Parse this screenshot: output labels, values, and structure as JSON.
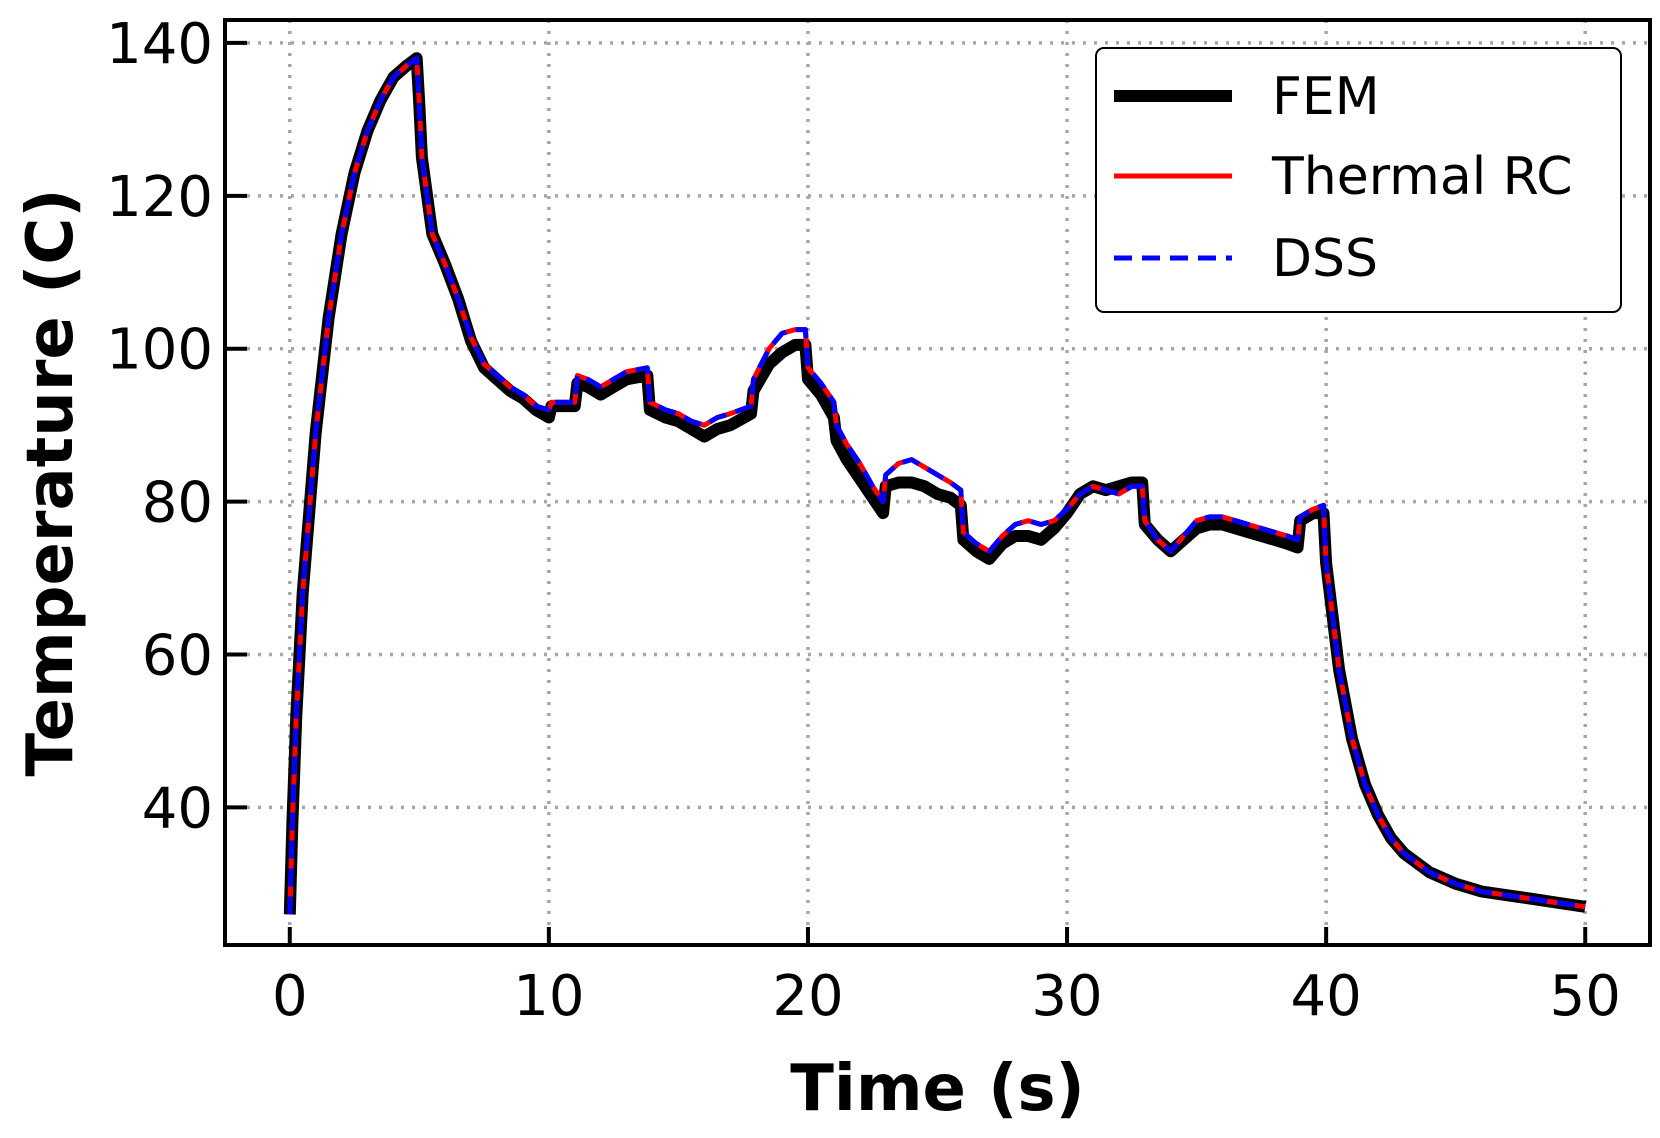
{
  "chart_data": {
    "type": "line",
    "title": "",
    "xlabel": "Time (s)",
    "ylabel": "Temperature (C)",
    "xlim": [
      -2.5,
      52.5
    ],
    "ylim": [
      22,
      143
    ],
    "xticks": [
      0,
      10,
      20,
      30,
      40,
      50
    ],
    "yticks": [
      40,
      60,
      80,
      100,
      120,
      140
    ],
    "grid": true,
    "legend_position": "top-right",
    "series": [
      {
        "name": "FEM",
        "color": "#000000",
        "style": "solid-thick",
        "x": [
          0,
          0.1,
          0.25,
          0.5,
          1,
          1.5,
          2,
          2.5,
          3,
          3.5,
          4,
          4.5,
          4.9,
          5.0,
          5.1,
          5.5,
          6,
          6.5,
          7,
          7.5,
          8,
          8.5,
          9,
          9.5,
          10,
          10.1,
          11,
          11.1,
          11.5,
          12,
          12.5,
          13,
          13.8,
          13.9,
          14.5,
          15,
          15.5,
          16,
          16.5,
          17,
          17.8,
          17.9,
          18.5,
          19,
          19.5,
          19.9,
          20.0,
          20.5,
          21,
          21.1,
          21.5,
          22,
          22.5,
          22.9,
          23.0,
          23.5,
          24,
          24.5,
          25,
          25.5,
          25.9,
          26.0,
          26.5,
          27,
          27.5,
          28,
          28.5,
          29,
          29.5,
          30,
          30.5,
          31,
          31.5,
          32,
          32.5,
          32.9,
          33.0,
          33.5,
          34,
          34.5,
          35,
          35.5,
          36,
          36.5,
          37,
          37.5,
          38,
          38.5,
          38.9,
          39.0,
          39.5,
          39.9,
          40.0,
          40.5,
          41,
          41.5,
          42,
          42.5,
          43,
          44,
          45,
          46,
          47,
          48,
          49,
          50
        ],
        "y": [
          26,
          38,
          52,
          68,
          89,
          104,
          115,
          123,
          128.5,
          132.5,
          135.5,
          137,
          138,
          132,
          125,
          115,
          111,
          106.5,
          101,
          97.5,
          96,
          94.5,
          93.5,
          92,
          91,
          92.5,
          92.5,
          95.5,
          95,
          94,
          95,
          96,
          96.5,
          92,
          91,
          90.5,
          89.5,
          88.5,
          89.5,
          90,
          91.5,
          94.5,
          98,
          99.5,
          100.5,
          100.5,
          96,
          94,
          91,
          88,
          85.5,
          83,
          80.5,
          78.5,
          82,
          82.5,
          82.5,
          82,
          81,
          80.5,
          79.5,
          75,
          73.5,
          72.5,
          74.5,
          75.5,
          75.5,
          75,
          76.5,
          78.5,
          81,
          82,
          81.5,
          82,
          82.5,
          82.5,
          77,
          75,
          73.5,
          75,
          76.5,
          77,
          77,
          76.5,
          76,
          75.5,
          75,
          74.5,
          74,
          77.5,
          78.5,
          78.5,
          72,
          58,
          49,
          43,
          39,
          36,
          34,
          31.5,
          30,
          29,
          28.5,
          28,
          27.5,
          27
        ]
      },
      {
        "name": "Thermal RC",
        "color": "#ff0000",
        "style": "solid",
        "x": [
          0,
          0.1,
          0.25,
          0.5,
          1,
          1.5,
          2,
          2.5,
          3,
          3.5,
          4,
          4.5,
          4.9,
          5.0,
          5.1,
          5.5,
          6,
          6.5,
          7,
          7.5,
          8,
          8.5,
          9,
          9.5,
          10,
          10.1,
          11,
          11.1,
          11.5,
          12,
          12.5,
          13,
          13.8,
          13.9,
          14.5,
          15,
          15.5,
          16,
          16.5,
          17,
          17.8,
          17.9,
          18.5,
          19,
          19.5,
          19.9,
          20.0,
          20.5,
          21,
          21.1,
          21.5,
          22,
          22.5,
          22.9,
          23.0,
          23.5,
          24,
          24.5,
          25,
          25.5,
          25.9,
          26.0,
          26.5,
          27,
          27.5,
          28,
          28.5,
          29,
          29.5,
          30,
          30.5,
          31,
          31.5,
          32,
          32.5,
          32.9,
          33.0,
          33.5,
          34,
          34.5,
          35,
          35.5,
          36,
          36.5,
          37,
          37.5,
          38,
          38.5,
          38.9,
          39.0,
          39.5,
          39.9,
          40.0,
          40.5,
          41,
          41.5,
          42,
          42.5,
          43,
          44,
          45,
          46,
          47,
          48,
          49,
          50
        ],
        "y": [
          26,
          38,
          52,
          68,
          89,
          104,
          115,
          123,
          128.5,
          132.5,
          135.5,
          137,
          138,
          132,
          125,
          115,
          111,
          106.5,
          101.5,
          98,
          96.5,
          95,
          94,
          92.5,
          92,
          93,
          93,
          96.5,
          96,
          95,
          96,
          97,
          97.5,
          93,
          92,
          91.5,
          90.5,
          90,
          91,
          91.5,
          92.5,
          96,
          100,
          102,
          102.5,
          102.5,
          97.5,
          95.5,
          93,
          90,
          87.5,
          85,
          82,
          80,
          83.5,
          85,
          85.5,
          84.5,
          83.5,
          82.5,
          81.5,
          76,
          74.5,
          73.5,
          75.5,
          77,
          77.5,
          77,
          77.5,
          79,
          81,
          82,
          81.5,
          81,
          82,
          82,
          77.5,
          75,
          73.5,
          75.5,
          77.5,
          78,
          78,
          77.5,
          77,
          76.5,
          76,
          75.5,
          75,
          78,
          79,
          79.5,
          72,
          58,
          49,
          43,
          39,
          36,
          34,
          31.5,
          30,
          29,
          28.5,
          28,
          27.5,
          27
        ]
      },
      {
        "name": "DSS",
        "color": "#0000ff",
        "style": "dashed",
        "x": [
          0,
          0.1,
          0.25,
          0.5,
          1,
          1.5,
          2,
          2.5,
          3,
          3.5,
          4,
          4.5,
          4.9,
          5.0,
          5.1,
          5.5,
          6,
          6.5,
          7,
          7.5,
          8,
          8.5,
          9,
          9.5,
          10,
          10.1,
          11,
          11.1,
          11.5,
          12,
          12.5,
          13,
          13.8,
          13.9,
          14.5,
          15,
          15.5,
          16,
          16.5,
          17,
          17.8,
          17.9,
          18.5,
          19,
          19.5,
          19.9,
          20.0,
          20.5,
          21,
          21.1,
          21.5,
          22,
          22.5,
          22.9,
          23.0,
          23.5,
          24,
          24.5,
          25,
          25.5,
          25.9,
          26.0,
          26.5,
          27,
          27.5,
          28,
          28.5,
          29,
          29.5,
          30,
          30.5,
          31,
          31.5,
          32,
          32.5,
          32.9,
          33.0,
          33.5,
          34,
          34.5,
          35,
          35.5,
          36,
          36.5,
          37,
          37.5,
          38,
          38.5,
          38.9,
          39.0,
          39.5,
          39.9,
          40.0,
          40.5,
          41,
          41.5,
          42,
          42.5,
          43,
          44,
          45,
          46,
          47,
          48,
          49,
          50
        ],
        "y": [
          26,
          38,
          52,
          68,
          89,
          104,
          115,
          123,
          128.5,
          132.5,
          135.5,
          137,
          138,
          132,
          125,
          115,
          111,
          106.5,
          101.5,
          98,
          96.5,
          95,
          94,
          92.5,
          92,
          93,
          93,
          96.5,
          96,
          95,
          96,
          97,
          97.5,
          93,
          92,
          91.5,
          90.5,
          90,
          91,
          91.5,
          92.5,
          96,
          100,
          102,
          102.5,
          102.5,
          97.5,
          95.5,
          93,
          90,
          87.5,
          85,
          82,
          80,
          83.5,
          85,
          85.5,
          84.5,
          83.5,
          82.5,
          81.5,
          76,
          74.5,
          73.5,
          75.5,
          77,
          77.5,
          77,
          77.5,
          79,
          81,
          82,
          81.5,
          81,
          82,
          82,
          77.5,
          75,
          73.5,
          75.5,
          77.5,
          78,
          78,
          77.5,
          77,
          76.5,
          76,
          75.5,
          75,
          78,
          79,
          79.5,
          72,
          58,
          49,
          43,
          39,
          36,
          34,
          31.5,
          30,
          29,
          28.5,
          28,
          27.5,
          27
        ]
      }
    ]
  }
}
